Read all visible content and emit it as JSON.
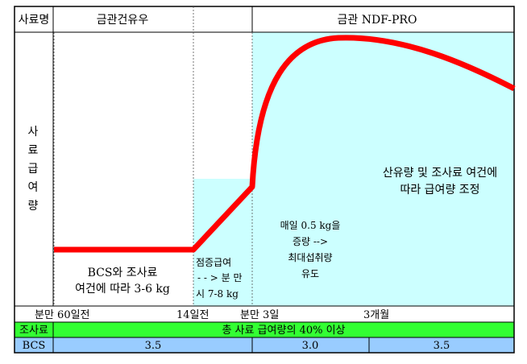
{
  "header": {
    "col_label": "사료명",
    "phase_dry": "금관건유우",
    "phase_lact": "금관 NDF-PRO"
  },
  "y_axis": {
    "chars": [
      "사",
      "료",
      "급",
      "여",
      "량"
    ]
  },
  "annotations": {
    "dry_line1": "BCS와 조사료",
    "dry_line2": "여건에 따라 3-6 kg",
    "steam_line1": "점증급여",
    "steam_line2": "- - > 분 만",
    "steam_line3": "시 7-8 kg",
    "early_line1": "매일  0.5 kg을",
    "early_line2": "증량  -->",
    "early_line3": "최대섭취량",
    "early_line4": "유도",
    "late_line1": "산유량 및 조사료 여건에",
    "late_line2": "따라 급여량 조정"
  },
  "timeline": {
    "t1": "분만 60일전",
    "t2": "14일전",
    "t3": "분만 3일",
    "t4": "3개월"
  },
  "forage_row": {
    "label": "조사료",
    "text": "총 사료 급여량의 40% 이상"
  },
  "bcs_row": {
    "label": "BCS",
    "v1": "3.5",
    "v2": "3.0",
    "v3": "3.5"
  },
  "colors": {
    "curve": "#ff0000",
    "shade": "#ccffff",
    "forage": "#33ff33",
    "bcs": "#99ccff"
  }
}
